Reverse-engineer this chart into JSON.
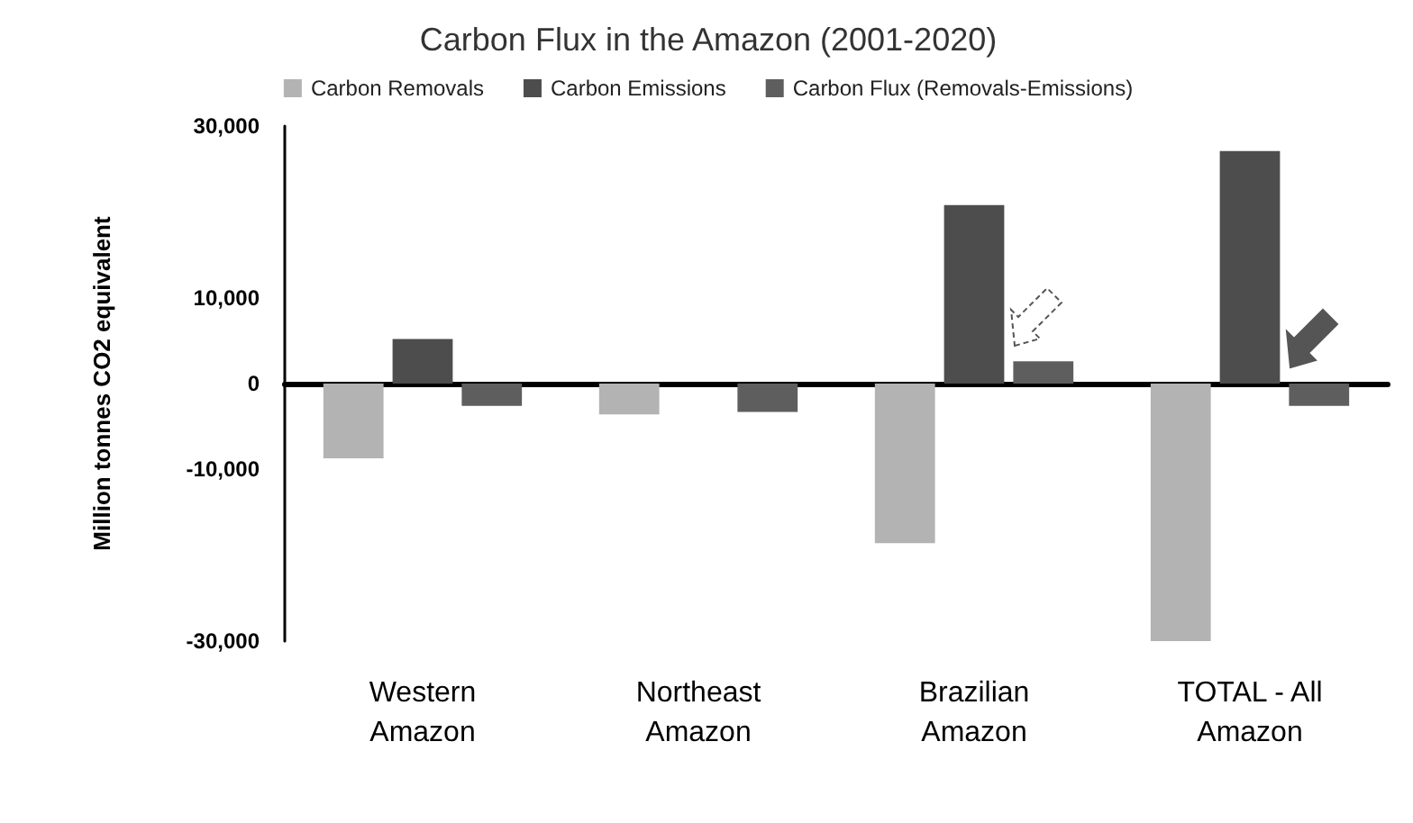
{
  "chart_data": {
    "type": "bar",
    "title": "Carbon Flux in the Amazon (2001-2020)",
    "ylabel": "Million tonnes CO2 equivalent",
    "categories": [
      "Western\nAmazon",
      "Northeast\nAmazon",
      "Brazilian\nAmazon",
      "TOTAL - All\nAmazon"
    ],
    "series": [
      {
        "name": "Carbon Removals",
        "color": "#b3b3b3",
        "values": [
          -8700,
          -3600,
          -18600,
          -30000
        ]
      },
      {
        "name": "Carbon Emissions",
        "color": "#4d4d4d",
        "values": [
          5200,
          null,
          20800,
          27100
        ]
      },
      {
        "name": "Carbon Flux (Removals-Emissions)",
        "color": "#5e5e5e",
        "values": [
          -2600,
          -3300,
          2600,
          -2600
        ]
      }
    ],
    "ylim": [
      -30000,
      30000
    ],
    "yticks": [
      {
        "value": -30000,
        "label": "-30,000"
      },
      {
        "value": -10000,
        "label": "-10,000"
      },
      0,
      {
        "value": 10000,
        "label": "10,000"
      },
      {
        "value": 30000,
        "label": "30,000"
      }
    ],
    "legend": "top"
  }
}
